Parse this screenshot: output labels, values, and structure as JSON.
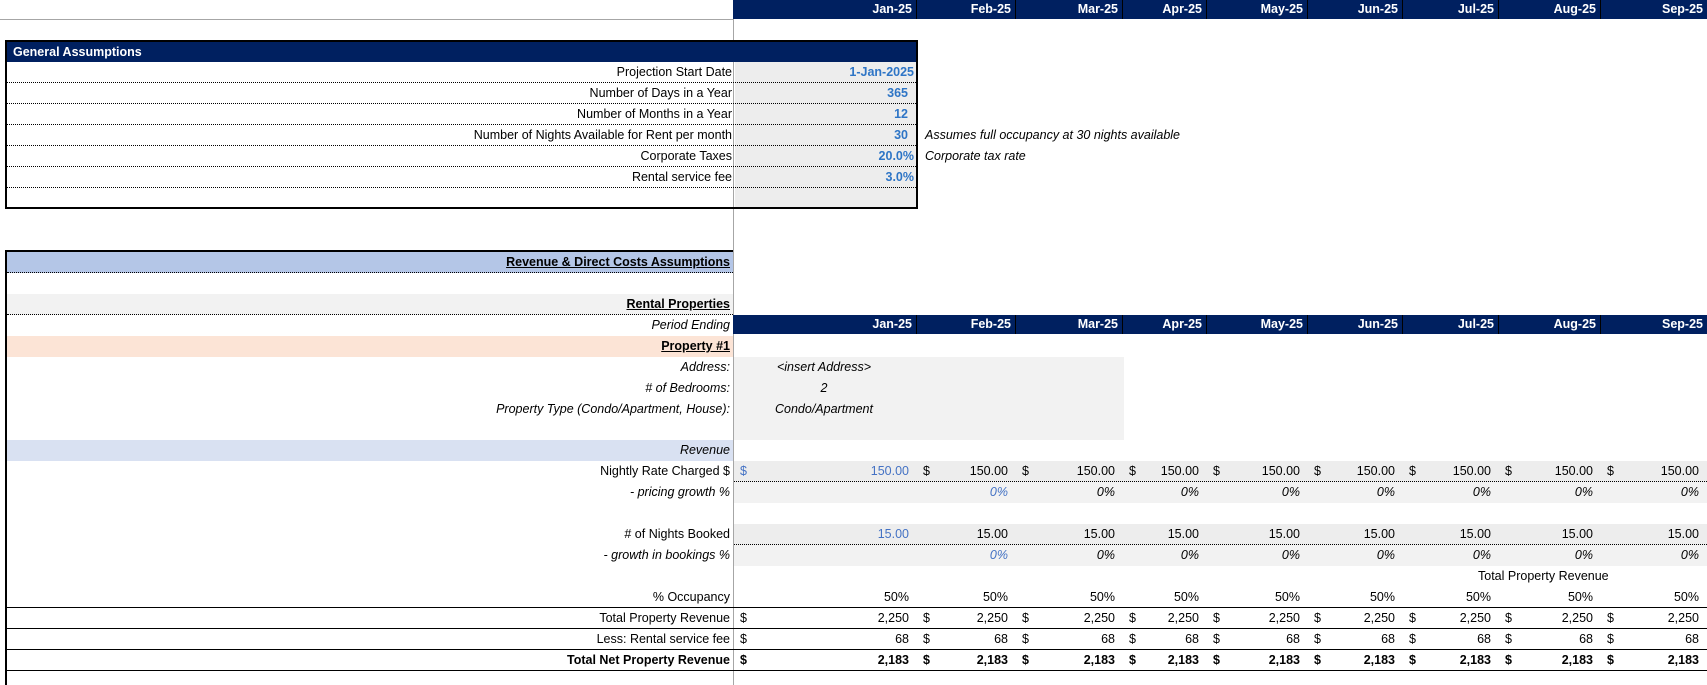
{
  "months": [
    "Jan-25",
    "Feb-25",
    "Mar-25",
    "Apr-25",
    "May-25",
    "Jun-25",
    "Jul-25",
    "Aug-25",
    "Sep-25"
  ],
  "general_assumptions": {
    "title": "General Assumptions",
    "rows": [
      {
        "label": "Projection Start Date",
        "value": "1-Jan-2025",
        "note": ""
      },
      {
        "label": "Number of Days in a Year",
        "value": "365",
        "note": ""
      },
      {
        "label": "Number of Months in a Year",
        "value": "12",
        "note": ""
      },
      {
        "label": "Number of Nights Available for Rent per month",
        "value": "30",
        "note": "Assumes full occupancy at 30 nights available"
      },
      {
        "label": "Corporate Taxes",
        "value": "20.0%",
        "note": "Corporate tax rate"
      },
      {
        "label": "Rental service fee",
        "value": "3.0%",
        "note": ""
      }
    ]
  },
  "revenue_section": {
    "title": "Revenue & Direct Costs Assumptions",
    "rental_properties": "Rental Properties",
    "period_ending": "Period Ending",
    "property": {
      "title": "Property #1",
      "address_label": "Address:",
      "address_value": "<insert Address>",
      "bedrooms_label": "# of Bedrooms:",
      "bedrooms_value": "2",
      "type_label": "Property Type (Condo/Apartment, House):",
      "type_value": "Condo/Apartment"
    },
    "revenue_label": "Revenue",
    "nightly_rate": {
      "label": "Nightly Rate Charged $",
      "currency": "$",
      "values": [
        "150.00",
        "150.00",
        "150.00",
        "150.00",
        "150.00",
        "150.00",
        "150.00",
        "150.00",
        "150.00"
      ]
    },
    "pricing_growth": {
      "label": "- pricing growth %",
      "values": [
        "",
        "0%",
        "0%",
        "0%",
        "0%",
        "0%",
        "0%",
        "0%",
        "0%"
      ]
    },
    "nights_booked": {
      "label": "# of Nights Booked",
      "values": [
        "15.00",
        "15.00",
        "15.00",
        "15.00",
        "15.00",
        "15.00",
        "15.00",
        "15.00",
        "15.00"
      ]
    },
    "bookings_growth": {
      "label": "- growth in bookings %",
      "values": [
        "",
        "0%",
        "0%",
        "0%",
        "0%",
        "0%",
        "0%",
        "0%",
        "0%"
      ]
    },
    "floating_label": "Total Property Revenue",
    "occupancy": {
      "label": "% Occupancy",
      "values": [
        "50%",
        "50%",
        "50%",
        "50%",
        "50%",
        "50%",
        "50%",
        "50%",
        "50%"
      ]
    },
    "total_revenue": {
      "label": "Total Property Revenue",
      "currency": "$",
      "values": [
        "2,250",
        "2,250",
        "2,250",
        "2,250",
        "2,250",
        "2,250",
        "2,250",
        "2,250",
        "2,250"
      ]
    },
    "service_fee": {
      "label": "Less: Rental service fee",
      "currency": "$",
      "values": [
        "68",
        "68",
        "68",
        "68",
        "68",
        "68",
        "68",
        "68",
        "68"
      ]
    },
    "net_revenue": {
      "label": "Total Net Property Revenue",
      "currency": "$",
      "values": [
        "2,183",
        "2,183",
        "2,183",
        "2,183",
        "2,183",
        "2,183",
        "2,183",
        "2,183",
        "2,183"
      ]
    }
  },
  "colors": {
    "navy": "#002060",
    "input_blue": "#2e75c6",
    "section_blue": "#b4c6e7",
    "revenue_band": "#d9e1f2",
    "property_peach": "#fce4d6"
  }
}
